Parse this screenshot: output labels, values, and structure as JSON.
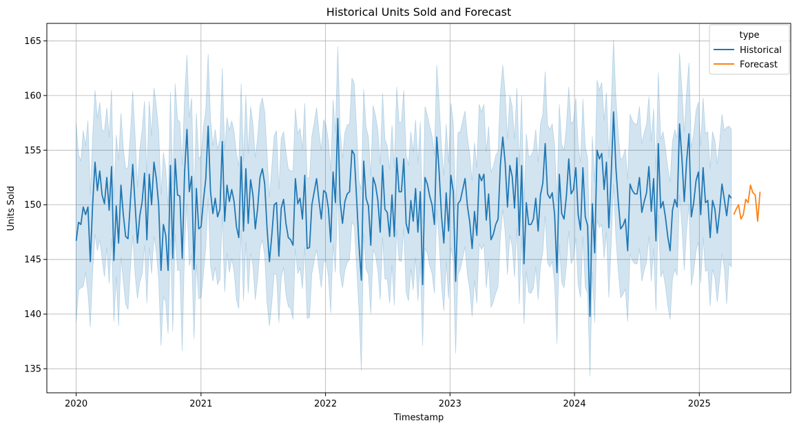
{
  "chart_data": {
    "type": "line",
    "title": "Historical Units Sold and Forecast",
    "xlabel": "Timestamp",
    "ylabel": "Units Sold",
    "xlim": [
      "2019-10-07",
      "2025-09-26"
    ],
    "ylim": [
      132.8,
      166.6
    ],
    "x_ticks": [
      "2020",
      "2021",
      "2022",
      "2023",
      "2024",
      "2025"
    ],
    "y_ticks": [
      135,
      140,
      145,
      150,
      155,
      160,
      165
    ],
    "grid": true,
    "legend": {
      "title": "type",
      "position": "top-right"
    },
    "colors": {
      "Historical": "#1f77b4",
      "Forecast": "#ff7f0e",
      "band": "#1f77b4"
    },
    "series": [
      {
        "name": "Historical",
        "x_start": "2020-01-01",
        "x_end": "2025-04-05",
        "values": [
          146.7,
          148.4,
          148.2,
          149.8,
          149.1,
          149.8,
          144.8,
          150.1,
          153.9,
          151.3,
          153.1,
          150.9,
          150.1,
          152.5,
          149.5,
          153.5,
          144.9,
          149.9,
          146.5,
          151.8,
          149.1,
          147.1,
          146.9,
          150.3,
          153.7,
          150.0,
          146.5,
          149.0,
          150.3,
          152.9,
          146.8,
          152.8,
          150.0,
          153.9,
          152.4,
          150.0,
          144.0,
          148.2,
          147.2,
          144.0,
          153.6,
          145.1,
          154.2,
          150.9,
          150.8,
          145.1,
          153.0,
          156.9,
          151.2,
          152.6,
          144.1,
          151.5,
          147.8,
          148.0,
          150.4,
          152.4,
          157.2,
          151.2,
          149.2,
          150.6,
          148.9,
          149.6,
          155.8,
          148.5,
          151.8,
          150.3,
          151.4,
          150.3,
          148.0,
          147.0,
          154.4,
          147.6,
          153.3,
          148.3,
          152.3,
          150.9,
          147.8,
          149.7,
          152.5,
          153.3,
          151.9,
          147.8,
          144.8,
          147.2,
          150.0,
          150.2,
          145.3,
          149.7,
          150.5,
          148.3,
          147.0,
          146.8,
          146.3,
          152.4,
          150.1,
          150.6,
          148.7,
          152.7,
          146.0,
          146.1,
          150.0,
          151.2,
          152.4,
          150.4,
          148.7,
          151.3,
          151.1,
          149.7,
          146.6,
          153.0,
          150.2,
          157.9,
          150.3,
          148.3,
          150.3,
          151.0,
          151.2,
          155.0,
          154.6,
          150.5,
          146.3,
          143.1,
          154.0,
          150.6,
          149.9,
          146.3,
          152.5,
          151.8,
          150.4,
          147.5,
          153.6,
          149.6,
          149.3,
          147.1,
          150.9,
          147.1,
          154.3,
          151.2,
          151.2,
          154.2,
          148.3,
          147.4,
          150.4,
          148.5,
          151.5,
          147.5,
          151.2,
          142.7,
          152.5,
          151.9,
          150.8,
          150.0,
          148.2,
          156.2,
          153.0,
          149.0,
          146.5,
          151.1,
          147.6,
          152.7,
          151.2,
          143.0,
          150.1,
          150.4,
          151.4,
          152.4,
          149.9,
          148.4,
          146.0,
          149.4,
          147.2,
          152.8,
          152.2,
          152.8,
          148.6,
          151.0,
          146.8,
          147.3,
          148.2,
          148.7,
          153.7,
          156.2,
          153.9,
          149.8,
          153.6,
          152.6,
          149.7,
          154.3,
          147.2,
          153.6,
          144.6,
          150.2,
          148.2,
          148.2,
          148.7,
          150.6,
          147.6,
          150.9,
          152.0,
          155.6,
          151.0,
          150.6,
          151.1,
          149.1,
          143.8,
          152.8,
          149.2,
          148.7,
          150.8,
          154.2,
          151.0,
          151.4,
          153.4,
          149.1,
          147.7,
          153.4,
          148.9,
          148.1,
          139.8,
          150.1,
          145.6,
          155.0,
          154.2,
          154.7,
          151.4,
          153.9,
          147.9,
          152.7,
          158.5,
          153.4,
          150.3,
          147.8,
          148.1,
          148.7,
          145.8,
          151.9,
          151.3,
          151.0,
          151.0,
          152.5,
          149.3,
          150.3,
          151.1,
          153.5,
          149.4,
          152.4,
          146.7,
          155.6,
          149.7,
          150.3,
          148.9,
          147.1,
          145.8,
          149.5,
          150.5,
          149.8,
          157.4,
          154.3,
          150.3,
          154.0,
          156.5,
          148.9,
          150.2,
          152.2,
          153.0,
          149.1,
          153.4,
          150.2,
          150.4,
          147.0,
          150.4,
          149.6,
          147.4,
          149.4,
          151.9,
          150.5,
          149.0,
          150.9,
          150.6
        ],
        "band_lower": [
          139.3,
          142.2,
          142.4,
          142.5,
          143.8,
          141.9,
          138.8,
          143.9,
          147.3,
          145.8,
          146.8,
          145.0,
          143.4,
          146.1,
          142.8,
          146.9,
          139.3,
          143.4,
          138.9,
          145.2,
          143.0,
          140.9,
          140.4,
          144.1,
          147.2,
          143.6,
          141.4,
          142.9,
          143.7,
          146.3,
          141.0,
          146.1,
          143.7,
          147.1,
          145.7,
          143.2,
          137.1,
          141.6,
          141.1,
          138.2,
          146.9,
          138.4,
          147.3,
          144.0,
          144.0,
          136.6,
          146.1,
          150.1,
          144.4,
          145.4,
          137.7,
          144.6,
          141.4,
          141.5,
          143.7,
          146.1,
          150.6,
          144.5,
          143.0,
          144.3,
          142.7,
          143.2,
          149.1,
          142.0,
          145.6,
          143.8,
          145.1,
          143.9,
          141.3,
          140.5,
          147.7,
          141.2,
          146.6,
          141.9,
          145.6,
          144.4,
          141.3,
          143.2,
          146.0,
          146.8,
          145.3,
          141.0,
          138.9,
          141.0,
          143.7,
          143.6,
          139.2,
          143.3,
          144.3,
          141.8,
          140.7,
          140.5,
          139.5,
          146.0,
          143.7,
          144.2,
          142.3,
          146.1,
          139.6,
          139.7,
          143.7,
          144.9,
          145.9,
          144.1,
          142.4,
          144.8,
          144.9,
          143.5,
          140.1,
          146.4,
          143.8,
          151.3,
          143.7,
          142.4,
          144.0,
          144.7,
          145.0,
          148.4,
          148.1,
          144.2,
          140.4,
          134.8,
          147.4,
          144.1,
          143.6,
          140.0,
          145.9,
          145.4,
          144.0,
          141.3,
          147.0,
          143.2,
          143.2,
          141.0,
          144.5,
          140.8,
          147.8,
          144.9,
          144.8,
          147.9,
          142.0,
          141.2,
          144.1,
          142.2,
          145.2,
          141.2,
          144.8,
          137.1,
          146.0,
          145.6,
          144.4,
          143.7,
          141.9,
          149.6,
          146.6,
          142.7,
          140.3,
          144.8,
          141.4,
          146.1,
          144.9,
          136.4,
          143.6,
          144.1,
          145.1,
          146.2,
          143.6,
          142.2,
          139.8,
          143.1,
          141.0,
          146.4,
          145.9,
          146.4,
          142.4,
          144.8,
          140.6,
          141.1,
          141.9,
          142.5,
          147.1,
          149.6,
          147.5,
          143.6,
          147.2,
          146.2,
          143.4,
          147.9,
          140.9,
          147.2,
          139.1,
          143.9,
          142.0,
          141.9,
          142.4,
          144.3,
          141.3,
          144.4,
          145.7,
          149.0,
          144.7,
          144.3,
          144.8,
          142.8,
          137.3,
          146.4,
          142.9,
          142.4,
          144.4,
          147.6,
          144.6,
          145.1,
          147.0,
          142.7,
          141.5,
          147.1,
          142.5,
          141.9,
          134.3,
          143.9,
          139.2,
          148.6,
          147.9,
          148.2,
          145.1,
          147.5,
          141.5,
          146.3,
          151.9,
          147.0,
          144.0,
          141.5,
          141.8,
          142.3,
          139.3,
          145.5,
          144.9,
          144.6,
          144.6,
          146.0,
          143.0,
          144.0,
          144.8,
          147.1,
          143.0,
          146.0,
          140.3,
          149.1,
          143.4,
          143.9,
          142.6,
          140.8,
          139.5,
          143.2,
          144.1,
          143.5,
          150.9,
          148.0,
          144.0,
          147.7,
          150.0,
          142.6,
          143.9,
          145.8,
          146.6,
          142.8,
          147.0,
          143.9,
          144.1,
          140.7,
          144.1,
          143.3,
          141.1,
          143.1,
          145.5,
          144.2,
          140.9,
          144.6,
          144.3
        ],
        "band_upper": [
          157.5,
          154.6,
          154.0,
          156.8,
          155.4,
          157.7,
          150.9,
          156.3,
          160.5,
          157.9,
          159.4,
          156.8,
          156.8,
          158.9,
          156.2,
          160.5,
          150.5,
          156.4,
          154.1,
          158.4,
          155.2,
          153.3,
          153.4,
          156.5,
          160.4,
          156.4,
          151.6,
          155.1,
          156.9,
          159.5,
          152.6,
          159.5,
          156.3,
          160.7,
          159.1,
          156.8,
          150.9,
          154.8,
          153.3,
          149.8,
          160.3,
          151.8,
          161.1,
          157.8,
          157.6,
          153.6,
          159.9,
          163.7,
          158.0,
          159.8,
          150.5,
          158.4,
          154.2,
          154.5,
          157.1,
          158.7,
          163.8,
          157.9,
          155.4,
          156.9,
          155.1,
          156.0,
          162.5,
          155.0,
          158.0,
          156.8,
          157.7,
          156.7,
          154.7,
          153.5,
          161.1,
          154.0,
          160.0,
          154.7,
          159.0,
          157.4,
          154.3,
          156.2,
          159.0,
          159.8,
          158.5,
          154.6,
          150.7,
          153.4,
          156.3,
          156.8,
          151.4,
          156.1,
          156.7,
          154.8,
          153.3,
          153.1,
          153.1,
          158.8,
          156.5,
          157.0,
          155.1,
          159.3,
          152.4,
          152.5,
          156.3,
          157.5,
          158.9,
          156.7,
          155.0,
          157.8,
          157.3,
          155.9,
          153.1,
          159.6,
          156.6,
          164.5,
          156.9,
          154.2,
          156.6,
          157.3,
          157.4,
          161.6,
          161.1,
          156.8,
          152.2,
          151.4,
          160.6,
          157.1,
          156.2,
          152.6,
          159.1,
          158.2,
          156.8,
          153.7,
          160.2,
          156.0,
          155.4,
          153.2,
          157.3,
          153.4,
          160.8,
          157.5,
          157.6,
          160.5,
          154.6,
          153.6,
          156.7,
          154.8,
          157.8,
          153.8,
          157.6,
          148.3,
          159.0,
          158.2,
          157.2,
          156.3,
          154.5,
          162.8,
          159.4,
          155.3,
          152.7,
          157.4,
          153.8,
          159.3,
          157.5,
          149.6,
          156.6,
          156.7,
          157.7,
          158.6,
          156.2,
          154.6,
          152.2,
          155.7,
          153.4,
          159.2,
          158.5,
          159.2,
          154.8,
          157.2,
          153.0,
          153.5,
          154.5,
          154.9,
          160.3,
          162.8,
          160.3,
          156.0,
          160.0,
          159.0,
          156.0,
          160.7,
          153.5,
          160.0,
          150.1,
          156.5,
          154.4,
          154.5,
          155.0,
          156.9,
          153.9,
          157.4,
          158.3,
          162.2,
          157.3,
          156.9,
          157.4,
          155.4,
          150.3,
          159.2,
          155.5,
          155.0,
          157.2,
          160.8,
          157.4,
          157.7,
          159.8,
          155.5,
          153.9,
          159.7,
          155.3,
          154.3,
          145.3,
          156.3,
          152.0,
          161.4,
          160.5,
          161.2,
          157.7,
          160.3,
          154.3,
          159.1,
          165.1,
          159.8,
          156.6,
          154.1,
          154.4,
          155.1,
          152.3,
          158.3,
          157.7,
          157.4,
          157.4,
          159.0,
          155.6,
          156.6,
          157.4,
          159.9,
          155.8,
          158.8,
          153.1,
          162.1,
          156.0,
          156.7,
          155.2,
          153.4,
          152.1,
          155.8,
          156.9,
          156.1,
          163.9,
          160.6,
          156.6,
          160.3,
          163.0,
          155.2,
          156.5,
          158.6,
          159.4,
          155.4,
          159.8,
          156.5,
          156.7,
          153.3,
          156.7,
          155.9,
          153.7,
          155.7,
          158.3,
          156.8,
          157.1,
          157.2,
          156.9
        ]
      },
      {
        "name": "Forecast",
        "x_start": "2025-04-12",
        "x_end": "2025-06-28",
        "values": [
          149.1,
          149.6,
          150.0,
          148.7,
          149.1,
          150.5,
          150.2,
          151.8,
          151.1,
          150.9,
          148.5,
          151.2
        ]
      }
    ]
  }
}
